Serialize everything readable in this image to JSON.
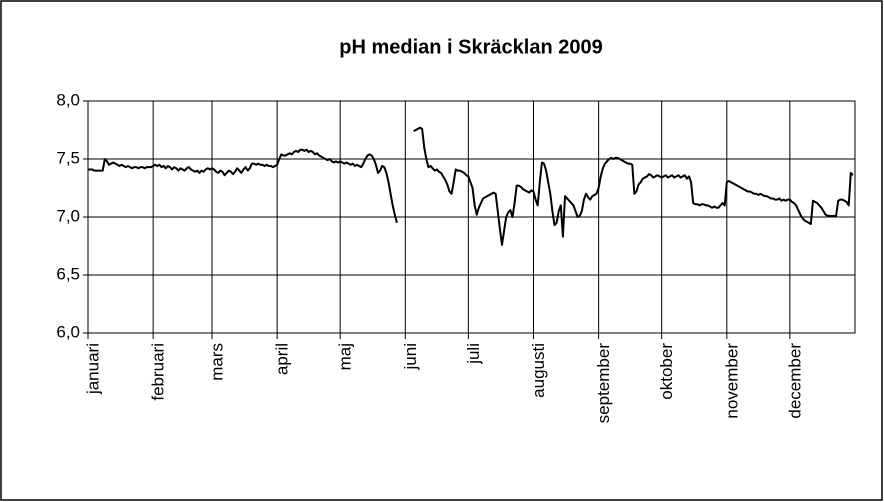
{
  "chart_data": {
    "type": "line",
    "title": "pH median i Skräcklan 2009",
    "categories": [
      "januari",
      null,
      null,
      null,
      null,
      null,
      null,
      null,
      null,
      null,
      null,
      null,
      null,
      null,
      null,
      null,
      null,
      null,
      null,
      null,
      null,
      null,
      null,
      null,
      null,
      null,
      null,
      null,
      null,
      null,
      null,
      "februari",
      null,
      null,
      null,
      null,
      null,
      null,
      null,
      null,
      null,
      null,
      null,
      null,
      null,
      null,
      null,
      null,
      null,
      null,
      null,
      null,
      null,
      null,
      null,
      null,
      null,
      null,
      null,
      "mars",
      null,
      null,
      null,
      null,
      null,
      null,
      null,
      null,
      null,
      null,
      null,
      null,
      null,
      null,
      null,
      null,
      null,
      null,
      null,
      null,
      null,
      null,
      null,
      null,
      null,
      null,
      null,
      null,
      null,
      null,
      "april",
      null,
      null,
      null,
      null,
      null,
      null,
      null,
      null,
      null,
      null,
      null,
      null,
      null,
      null,
      null,
      null,
      null,
      null,
      null,
      null,
      null,
      null,
      null,
      null,
      null,
      null,
      null,
      null,
      null,
      "maj",
      null,
      null,
      null,
      null,
      null,
      null,
      null,
      null,
      null,
      null,
      null,
      null,
      null,
      null,
      null,
      null,
      null,
      null,
      null,
      null,
      null,
      null,
      null,
      null,
      null,
      null,
      null,
      null,
      null,
      null,
      "juni",
      null,
      null,
      null,
      null,
      null,
      null,
      null,
      null,
      null,
      null,
      null,
      null,
      null,
      null,
      null,
      null,
      null,
      null,
      null,
      null,
      null,
      null,
      null,
      null,
      null,
      null,
      null,
      null,
      null,
      "juli",
      null,
      null,
      null,
      null,
      null,
      null,
      null,
      null,
      null,
      null,
      null,
      null,
      null,
      null,
      null,
      null,
      null,
      null,
      null,
      null,
      null,
      null,
      null,
      null,
      null,
      null,
      null,
      null,
      null,
      null,
      "augusti",
      null,
      null,
      null,
      null,
      null,
      null,
      null,
      null,
      null,
      null,
      null,
      null,
      null,
      null,
      null,
      null,
      null,
      null,
      null,
      null,
      null,
      null,
      null,
      null,
      null,
      null,
      null,
      null,
      null,
      null,
      "september",
      null,
      null,
      null,
      null,
      null,
      null,
      null,
      null,
      null,
      null,
      null,
      null,
      null,
      null,
      null,
      null,
      null,
      null,
      null,
      null,
      null,
      null,
      null,
      null,
      null,
      null,
      null,
      null,
      null,
      "oktober",
      null,
      null,
      null,
      null,
      null,
      null,
      null,
      null,
      null,
      null,
      null,
      null,
      null,
      null,
      null,
      null,
      null,
      null,
      null,
      null,
      null,
      null,
      null,
      null,
      null,
      null,
      null,
      null,
      null,
      null,
      "november",
      null,
      null,
      null,
      null,
      null,
      null,
      null,
      null,
      null,
      null,
      null,
      null,
      null,
      null,
      null,
      null,
      null,
      null,
      null,
      null,
      null,
      null,
      null,
      null,
      null,
      null,
      null,
      null,
      null,
      "december",
      null,
      null,
      null,
      null,
      null,
      null,
      null,
      null,
      null,
      null,
      null,
      null,
      null,
      null,
      null,
      null,
      null,
      null,
      null,
      null,
      null,
      null,
      null,
      null,
      null,
      null,
      null,
      null,
      null,
      null
    ],
    "values": [
      7.41,
      7.41,
      7.41,
      7.4,
      7.4,
      7.4,
      7.4,
      7.4,
      7.5,
      7.48,
      7.45,
      7.46,
      7.47,
      7.46,
      7.45,
      7.44,
      7.45,
      7.44,
      7.43,
      7.44,
      7.43,
      7.42,
      7.43,
      7.43,
      7.42,
      7.43,
      7.43,
      7.42,
      7.43,
      7.43,
      7.43,
      7.44,
      7.45,
      7.44,
      7.45,
      7.43,
      7.44,
      7.42,
      7.44,
      7.43,
      7.41,
      7.43,
      7.42,
      7.4,
      7.42,
      7.41,
      7.4,
      7.42,
      7.43,
      7.41,
      7.4,
      7.39,
      7.4,
      7.38,
      7.4,
      7.39,
      7.41,
      7.42,
      7.41,
      7.42,
      7.41,
      7.39,
      7.38,
      7.4,
      7.39,
      7.36,
      7.38,
      7.4,
      7.39,
      7.37,
      7.39,
      7.42,
      7.4,
      7.38,
      7.41,
      7.43,
      7.4,
      7.42,
      7.46,
      7.46,
      7.45,
      7.46,
      7.45,
      7.45,
      7.44,
      7.45,
      7.44,
      7.44,
      7.43,
      7.44,
      7.45,
      7.5,
      7.54,
      7.53,
      7.53,
      7.54,
      7.55,
      7.54,
      7.56,
      7.57,
      7.56,
      7.58,
      7.58,
      7.57,
      7.58,
      7.56,
      7.57,
      7.56,
      7.54,
      7.55,
      7.53,
      7.52,
      7.51,
      7.5,
      7.49,
      7.5,
      7.48,
      7.47,
      7.48,
      7.47,
      7.48,
      7.47,
      7.46,
      7.47,
      7.46,
      7.45,
      7.46,
      7.44,
      7.45,
      7.44,
      7.43,
      7.46,
      7.5,
      7.53,
      7.54,
      7.53,
      7.5,
      7.45,
      7.38,
      7.4,
      7.44,
      7.43,
      7.38,
      7.3,
      7.2,
      7.1,
      7.02,
      6.95,
      null,
      null,
      null,
      null,
      null,
      null,
      null,
      7.74,
      7.75,
      7.76,
      7.77,
      7.76,
      7.6,
      7.5,
      7.43,
      7.44,
      7.42,
      7.4,
      7.41,
      7.39,
      7.38,
      7.35,
      7.32,
      7.28,
      7.22,
      7.2,
      7.3,
      7.41,
      7.4,
      7.4,
      7.39,
      7.38,
      7.36,
      7.35,
      7.3,
      7.25,
      7.1,
      7.02,
      7.08,
      7.12,
      7.16,
      7.17,
      7.18,
      7.19,
      7.2,
      7.21,
      7.2,
      7.05,
      6.9,
      6.76,
      6.88,
      7.0,
      7.04,
      7.06,
      7.0,
      7.12,
      7.27,
      7.27,
      7.26,
      7.24,
      7.23,
      7.22,
      7.21,
      7.23,
      7.22,
      7.15,
      7.1,
      7.3,
      7.47,
      7.46,
      7.4,
      7.3,
      7.2,
      7.05,
      6.93,
      6.95,
      7.05,
      7.1,
      6.83,
      7.18,
      7.16,
      7.14,
      7.12,
      7.1,
      7.05,
      7.0,
      7.01,
      7.05,
      7.15,
      7.2,
      7.17,
      7.15,
      7.18,
      7.19,
      7.2,
      7.25,
      7.35,
      7.42,
      7.46,
      7.48,
      7.5,
      7.51,
      7.5,
      7.51,
      7.51,
      7.5,
      7.49,
      7.48,
      7.47,
      7.46,
      7.46,
      7.45,
      7.2,
      7.22,
      7.28,
      7.3,
      7.33,
      7.34,
      7.35,
      7.37,
      7.36,
      7.34,
      7.35,
      7.36,
      7.35,
      7.34,
      7.35,
      7.36,
      7.34,
      7.35,
      7.36,
      7.34,
      7.35,
      7.36,
      7.34,
      7.35,
      7.36,
      7.33,
      7.35,
      7.3,
      7.12,
      7.11,
      7.11,
      7.1,
      7.11,
      7.11,
      7.1,
      7.1,
      7.09,
      7.08,
      7.09,
      7.08,
      7.08,
      7.1,
      7.12,
      7.1,
      7.3,
      7.31,
      7.3,
      7.29,
      7.28,
      7.27,
      7.26,
      7.25,
      7.24,
      7.23,
      7.22,
      7.22,
      7.21,
      7.2,
      7.2,
      7.19,
      7.2,
      7.19,
      7.18,
      7.18,
      7.17,
      7.16,
      7.16,
      7.15,
      7.15,
      7.16,
      7.14,
      7.15,
      7.14,
      7.15,
      7.15,
      7.13,
      7.12,
      7.1,
      7.06,
      7.02,
      6.99,
      6.97,
      6.96,
      6.95,
      6.94,
      7.14,
      7.13,
      7.12,
      7.1,
      7.08,
      7.05,
      7.02,
      7.01,
      7.01,
      7.01,
      7.01,
      7.01,
      7.14,
      7.15,
      7.15,
      7.14,
      7.13,
      7.1,
      7.38,
      7.36
    ],
    "color": "#000000",
    "ylim": [
      6,
      8
    ],
    "yticks": [
      {
        "value": 6,
        "label": "6,0"
      },
      {
        "value": 6.5,
        "label": "6,5"
      },
      {
        "value": 7,
        "label": "7,0"
      },
      {
        "value": 7.5,
        "label": "7,5"
      },
      {
        "value": 8,
        "label": "8,0"
      }
    ],
    "grid": true
  }
}
